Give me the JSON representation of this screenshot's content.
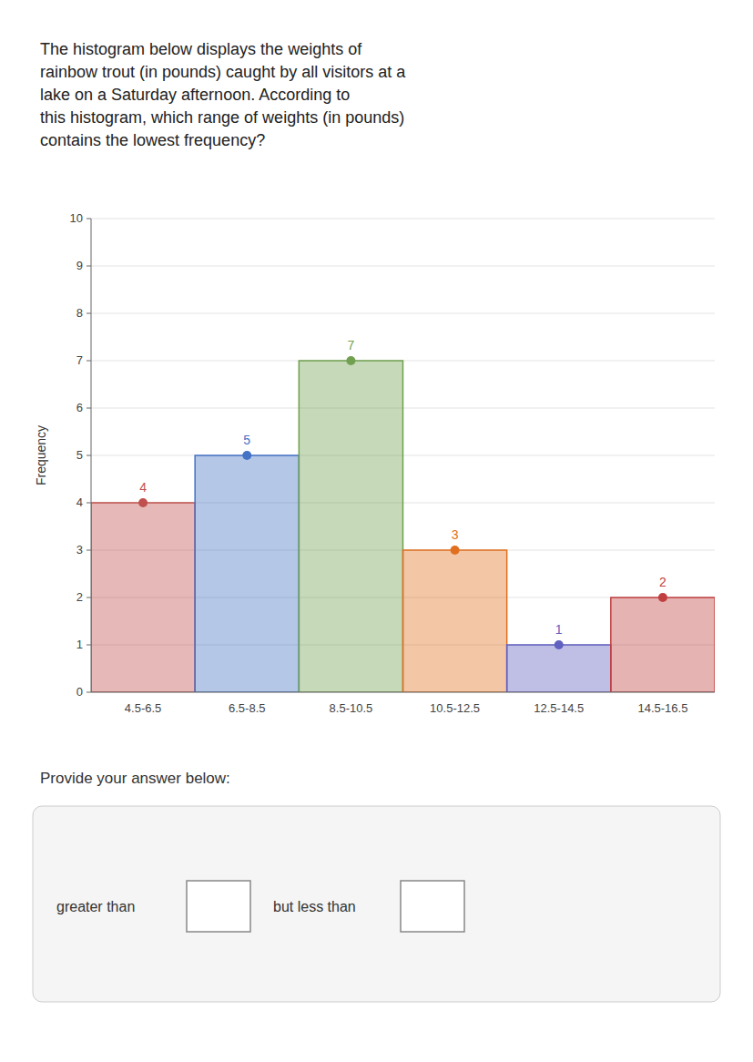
{
  "chart_data": {
    "type": "bar",
    "title": "The histogram below displays the weights of\nrainbow trout (in pounds) caught by all visitors at a\nlake on a Saturday afternoon. According to\nthis histogram, which range of weights (in pounds)\ncontains the lowest frequency?",
    "categories": [
      "4.5-6.5",
      "6.5-8.5",
      "8.5-10.5",
      "10.5-12.5",
      "12.5-14.5",
      "14.5-16.5"
    ],
    "values": [
      4,
      5,
      7,
      3,
      1,
      2
    ],
    "colors": [
      "#c0504d",
      "#4472c4",
      "#70a050",
      "#e07020",
      "#6060c0",
      "#c04040"
    ],
    "ylabel": "Frequency",
    "ylim": [
      0,
      10
    ],
    "yticks": [
      0,
      1,
      2,
      3,
      4,
      5,
      6,
      7,
      8,
      9,
      10
    ],
    "grid": true,
    "data_labels": true,
    "annotations": [
      "Provide your answer below:",
      "greater than",
      "but less than"
    ]
  }
}
